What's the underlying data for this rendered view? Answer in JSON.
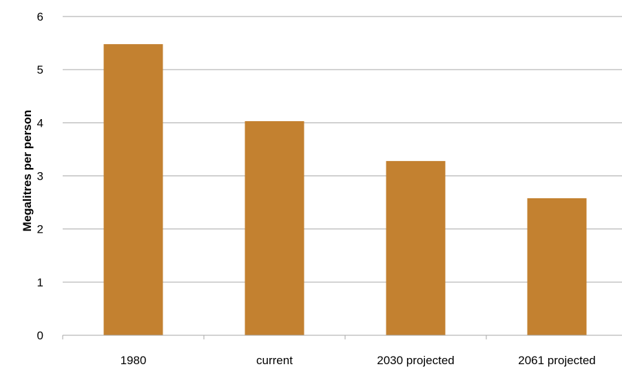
{
  "chart_data": {
    "type": "bar",
    "categories": [
      "1980",
      "current",
      "2030 projected",
      "2061 projected"
    ],
    "values": [
      5.48,
      4.03,
      3.28,
      2.58
    ],
    "xlabel": "",
    "ylabel": "Megalitres per person",
    "ylim": [
      0,
      6
    ],
    "yticks": [
      "0",
      "1",
      "2",
      "3",
      "4",
      "5",
      "6"
    ],
    "grid": true,
    "legend": "none",
    "bar_color": "#C38130",
    "grid_color": "#A6A6A6",
    "axis_color": "#A6A6A6"
  }
}
